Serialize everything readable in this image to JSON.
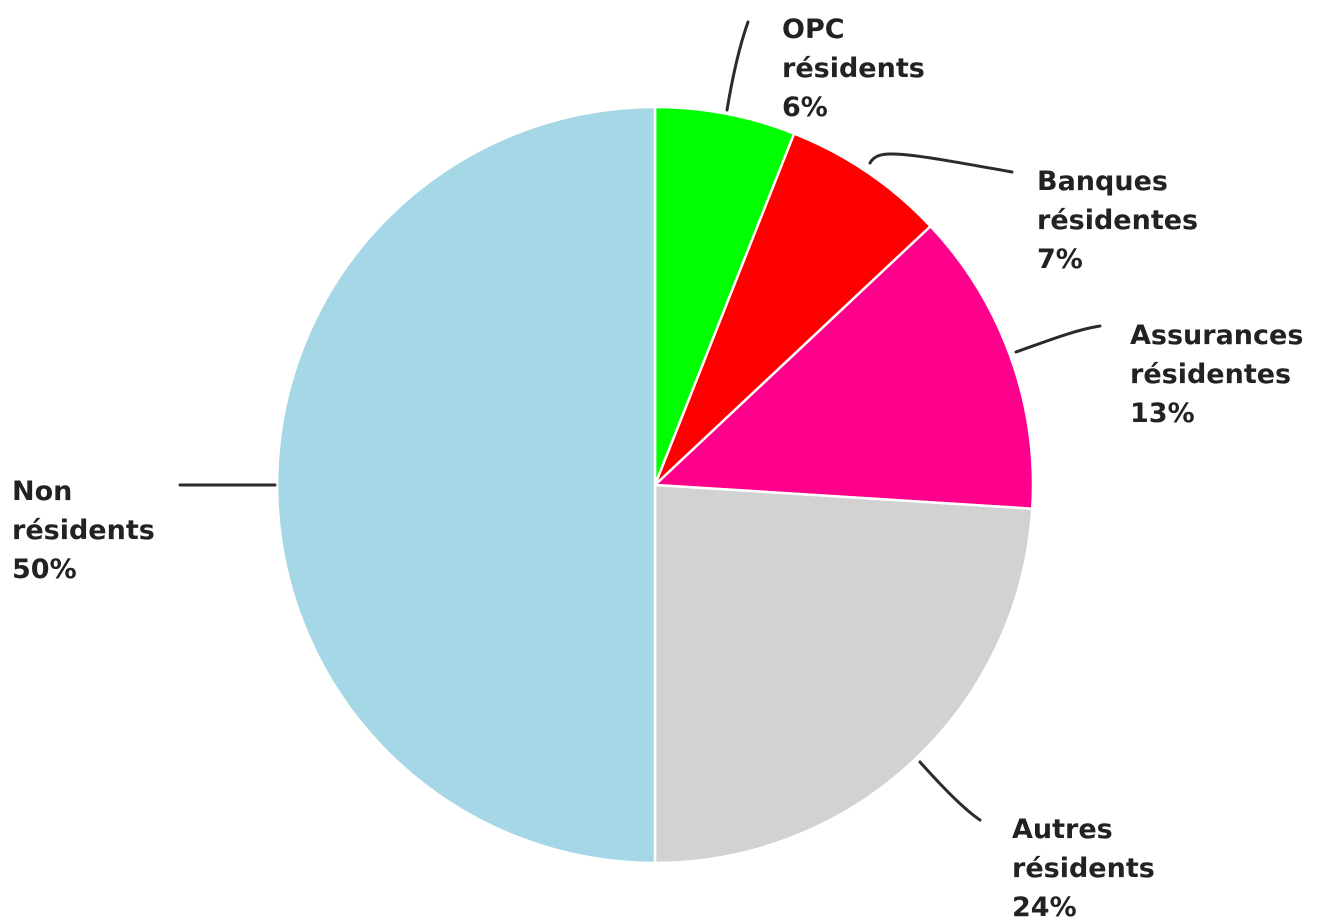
{
  "chart_data": {
    "type": "pie",
    "title": "",
    "start_angle_deg": 0,
    "direction": "clockwise",
    "slices": [
      {
        "name": "OPC résidents",
        "value": 6,
        "color": "#00ff00",
        "label_lines": [
          "OPC",
          "résidents",
          "6%"
        ]
      },
      {
        "name": "Banques résidentes",
        "value": 7,
        "color": "#ff0000",
        "label_lines": [
          "Banques",
          "résidentes",
          "7%"
        ]
      },
      {
        "name": "Assurances résidentes",
        "value": 13,
        "color": "#ff008c",
        "label_lines": [
          "Assurances",
          "résidentes",
          "13%"
        ]
      },
      {
        "name": "Autres résidents",
        "value": 24,
        "color": "#d2d2d2",
        "label_lines": [
          "Autres",
          "résidents",
          "24%"
        ]
      },
      {
        "name": "Non résidents",
        "value": 50,
        "color": "#a5d7e7",
        "label_lines": [
          "Non",
          "résidents",
          "50%"
        ]
      }
    ]
  }
}
